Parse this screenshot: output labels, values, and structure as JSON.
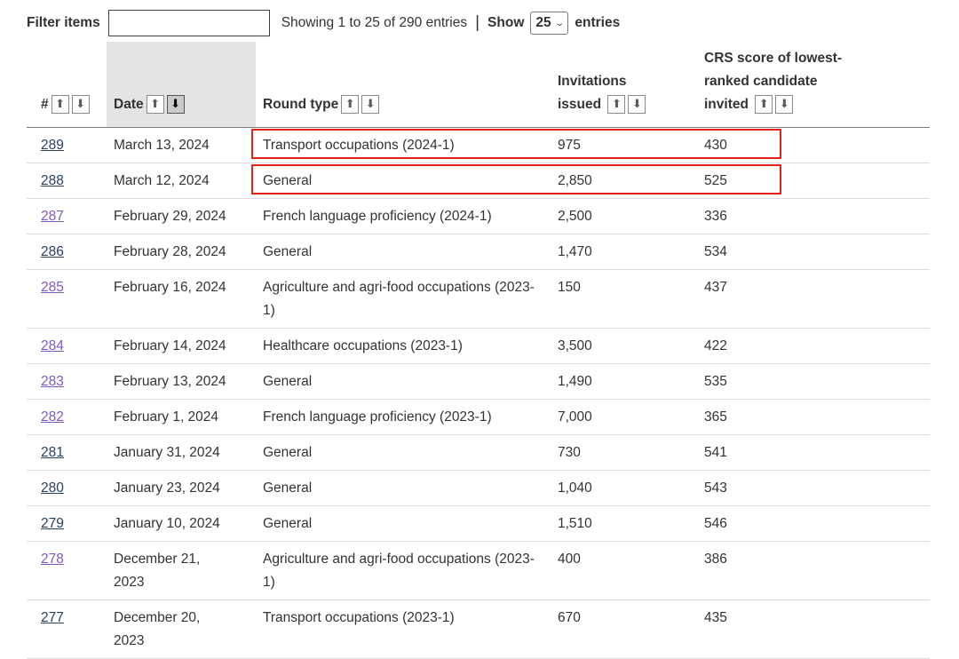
{
  "toolbar": {
    "filter_label": "Filter items",
    "filter_value": "",
    "showing_text": "Showing 1 to 25 of 290 entries",
    "separator": "|",
    "show_label": "Show",
    "page_size": "25",
    "entries_label": "entries"
  },
  "table": {
    "headers": {
      "num": "#",
      "date": "Date",
      "round_type": "Round type",
      "invitations": "Invitations issued",
      "crs": "CRS score of lowest-ranked candidate invited"
    },
    "sort_icons": {
      "asc": "⬆",
      "desc": "⬇"
    },
    "sorted_column": "date",
    "sorted_direction": "desc",
    "rows": [
      {
        "num": "289",
        "date": "March 13, 2024",
        "round_type": "Transport occupations (2024-1)",
        "invitations": "975",
        "crs": "430",
        "visited": false,
        "highlighted": true
      },
      {
        "num": "288",
        "date": "March 12, 2024",
        "round_type": "General",
        "invitations": "2,850",
        "crs": "525",
        "visited": false,
        "highlighted": true
      },
      {
        "num": "287",
        "date": "February 29, 2024",
        "round_type": "French language proficiency (2024-1)",
        "invitations": "2,500",
        "crs": "336",
        "visited": true,
        "highlighted": false
      },
      {
        "num": "286",
        "date": "February 28, 2024",
        "round_type": "General",
        "invitations": "1,470",
        "crs": "534",
        "visited": false,
        "highlighted": false
      },
      {
        "num": "285",
        "date": "February 16, 2024",
        "round_type": "Agriculture and agri-food occupations (2023-1)",
        "invitations": "150",
        "crs": "437",
        "visited": true,
        "highlighted": false
      },
      {
        "num": "284",
        "date": "February 14, 2024",
        "round_type": "Healthcare occupations (2023-1)",
        "invitations": "3,500",
        "crs": "422",
        "visited": true,
        "highlighted": false
      },
      {
        "num": "283",
        "date": "February 13, 2024",
        "round_type": "General",
        "invitations": "1,490",
        "crs": "535",
        "visited": true,
        "highlighted": false
      },
      {
        "num": "282",
        "date": "February 1, 2024",
        "round_type": "French language proficiency (2023-1)",
        "invitations": "7,000",
        "crs": "365",
        "visited": true,
        "highlighted": false
      },
      {
        "num": "281",
        "date": "January 31, 2024",
        "round_type": "General",
        "invitations": "730",
        "crs": "541",
        "visited": false,
        "highlighted": false
      },
      {
        "num": "280",
        "date": "January 23, 2024",
        "round_type": "General",
        "invitations": "1,040",
        "crs": "543",
        "visited": false,
        "highlighted": false
      },
      {
        "num": "279",
        "date": "January 10, 2024",
        "round_type": "General",
        "invitations": "1,510",
        "crs": "546",
        "visited": false,
        "highlighted": false
      },
      {
        "num": "278",
        "date": "December 21, 2023",
        "round_type": "Agriculture and agri-food occupations (2023-1)",
        "invitations": "400",
        "crs": "386",
        "visited": true,
        "highlighted": false
      },
      {
        "num": "277",
        "date": "December 20, 2023",
        "round_type": "Transport occupations (2023-1)",
        "invitations": "670",
        "crs": "435",
        "visited": false,
        "highlighted": false
      }
    ]
  },
  "colors": {
    "link": "#284162",
    "link_visited": "#7e57c2",
    "highlight_border": "#e32119",
    "sorted_header_bg": "#e4e4e4"
  }
}
